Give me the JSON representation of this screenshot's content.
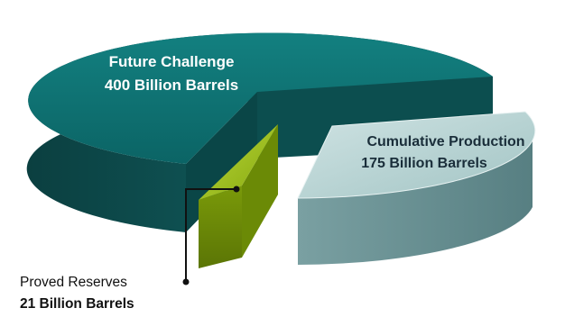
{
  "chart_data": {
    "type": "pie",
    "style": "3d-exploded",
    "slices": [
      {
        "label": "Future Challenge",
        "value_text": "400 Billion Barrels",
        "value": 400,
        "color": "#0e6b6b",
        "label_color": "#ffffff"
      },
      {
        "label": "Cumulative Production",
        "value_text": "175 Billion Barrels",
        "value": 175,
        "color": "#a9cccc",
        "label_color": "#1a2e3a"
      },
      {
        "label": "Proved Reserves",
        "value_text": "21 Billion Barrels",
        "value": 21,
        "color": "#8cb10f",
        "label_color": "#111111"
      }
    ],
    "unit": "Billion Barrels"
  }
}
